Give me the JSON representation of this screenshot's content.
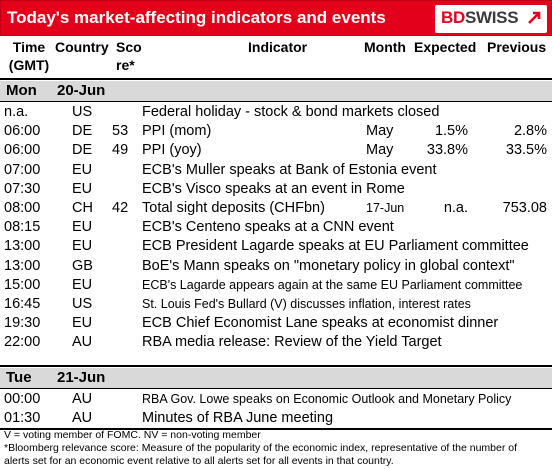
{
  "header": {
    "title": "Today's market-affecting indicators and events",
    "logo_bd": "BD",
    "logo_swiss": "SWISS"
  },
  "columns": {
    "time_l1": "Time",
    "time_l2": "(GMT)",
    "country": "Country",
    "score_l1": "Sco",
    "score_l2": "re*",
    "indicator": "Indicator",
    "month": "Month",
    "expected": "Expected",
    "previous": "Previous"
  },
  "days": [
    {
      "day": "Mon",
      "date": "20-Jun"
    },
    {
      "day": "Tue",
      "date": "21-Jun"
    }
  ],
  "rows_mon": [
    {
      "time": "n.a.",
      "country": "US",
      "score": "",
      "indicator": "Federal holiday - stock & bond markets closed",
      "month": "",
      "expected": "",
      "previous": ""
    },
    {
      "time": "06:00",
      "country": "DE",
      "score": "53",
      "indicator": "PPI (mom)",
      "month": "May",
      "expected": "1.5%",
      "previous": "2.8%"
    },
    {
      "time": "06:00",
      "country": "DE",
      "score": "49",
      "indicator": "PPI (yoy)",
      "month": "May",
      "expected": "33.8%",
      "previous": "33.5%"
    },
    {
      "time": "07:00",
      "country": "EU",
      "score": "",
      "indicator": "ECB's Muller speaks at Bank of Estonia event",
      "month": "",
      "expected": "",
      "previous": ""
    },
    {
      "time": "07:30",
      "country": "EU",
      "score": "",
      "indicator": "ECB's Visco speaks at an event in Rome",
      "month": "",
      "expected": "",
      "previous": ""
    },
    {
      "time": "08:00",
      "country": "CH",
      "score": "42",
      "indicator": "Total sight deposits (CHFbn)",
      "month": "17-Jun",
      "expected": "n.a.",
      "previous": "753.08"
    },
    {
      "time": "08:15",
      "country": "EU",
      "score": "",
      "indicator": "ECB's Centeno speaks at a CNN event",
      "month": "",
      "expected": "",
      "previous": ""
    },
    {
      "time": "13:00",
      "country": "EU",
      "score": "",
      "indicator": "ECB President Lagarde speaks at EU Parliament committee",
      "month": "",
      "expected": "",
      "previous": ""
    },
    {
      "time": "13:00",
      "country": "GB",
      "score": "",
      "indicator": "BoE's Mann speaks on \"monetary policy in global context\"",
      "month": "",
      "expected": "",
      "previous": ""
    },
    {
      "time": "15:00",
      "country": "EU",
      "score": "",
      "indicator": "ECB's Lagarde appears again at the same EU Parliament committee",
      "month": "",
      "expected": "",
      "previous": ""
    },
    {
      "time": "16:45",
      "country": "US",
      "score": "",
      "indicator": "St. Louis Fed's Bullard (V) discusses inflation, interest rates",
      "month": "",
      "expected": "",
      "previous": ""
    },
    {
      "time": "19:30",
      "country": "EU",
      "score": "",
      "indicator": "ECB Chief Economist Lane speaks at economist dinner",
      "month": "",
      "expected": "",
      "previous": ""
    },
    {
      "time": "22:00",
      "country": "AU",
      "score": "",
      "indicator": "RBA media release: Review of the Yield Target",
      "month": "",
      "expected": "",
      "previous": ""
    }
  ],
  "rows_tue": [
    {
      "time": "00:00",
      "country": "AU",
      "score": "",
      "indicator": "RBA Gov. Lowe speaks on Economic Outlook and Monetary Policy",
      "month": "",
      "expected": "",
      "previous": ""
    },
    {
      "time": "01:30",
      "country": "AU",
      "score": "",
      "indicator": "Minutes of RBA June meeting",
      "month": "",
      "expected": "",
      "previous": ""
    }
  ],
  "footnotes": {
    "line1": "V = voting member of FOMC. NV = non-voting member",
    "line2": "*Bloomberg relevance score:  Measure of the popularity of the economic index, representative of the number of",
    "line3": "alerts set for an economic event relative to all alerts set for all events in that country."
  },
  "colors": {
    "brand_red": "#e3001b",
    "day_band": "#d9d9d9"
  }
}
